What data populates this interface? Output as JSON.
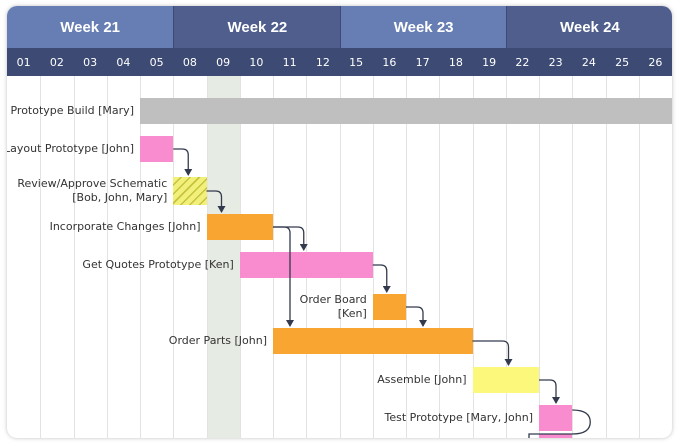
{
  "weeks": [
    {
      "label": "Week 21",
      "color": "#677eb4"
    },
    {
      "label": "Week 22",
      "color": "#4f5e8c"
    },
    {
      "label": "Week 23",
      "color": "#677eb4"
    },
    {
      "label": "Week 24",
      "color": "#4f5e8c"
    }
  ],
  "days": [
    "01",
    "02",
    "03",
    "04",
    "05",
    "08",
    "09",
    "10",
    "11",
    "12",
    "15",
    "16",
    "17",
    "18",
    "19",
    "22",
    "23",
    "24",
    "25",
    "26"
  ],
  "day_row_color": "#3d4b74",
  "current_day": "09",
  "tasks": [
    {
      "label": "Prototype Build [Mary]",
      "start": 4,
      "end": 20,
      "color": "#bfbfbf"
    },
    {
      "label": "Layout Prototype [John]",
      "start": 4,
      "end": 5,
      "color": "#f98ccf"
    },
    {
      "label": "Review/Approve Schematic\n[Bob, John, Mary]",
      "start": 5,
      "end": 6,
      "color": "#f1f07a",
      "pattern": "hatched"
    },
    {
      "label": "Incorporate Changes [John]",
      "start": 6,
      "end": 8,
      "color": "#f9a532"
    },
    {
      "label": "Get Quotes Prototype [Ken]",
      "start": 7,
      "end": 11,
      "color": "#f98ccf"
    },
    {
      "label": "Order Board\n[Ken]",
      "start": 11,
      "end": 12,
      "color": "#f9a532"
    },
    {
      "label": "Order Parts [John]",
      "start": 8,
      "end": 14,
      "color": "#f9a532"
    },
    {
      "label": "Assemble [John]",
      "start": 14,
      "end": 16,
      "color": "#fbf87b"
    },
    {
      "label": "Test Prototype [Mary, John]",
      "start": 16,
      "end": 17,
      "color": "#f98ccf"
    },
    {
      "label": "",
      "start": 16,
      "end": 17,
      "color": "#f98ccf"
    }
  ]
}
